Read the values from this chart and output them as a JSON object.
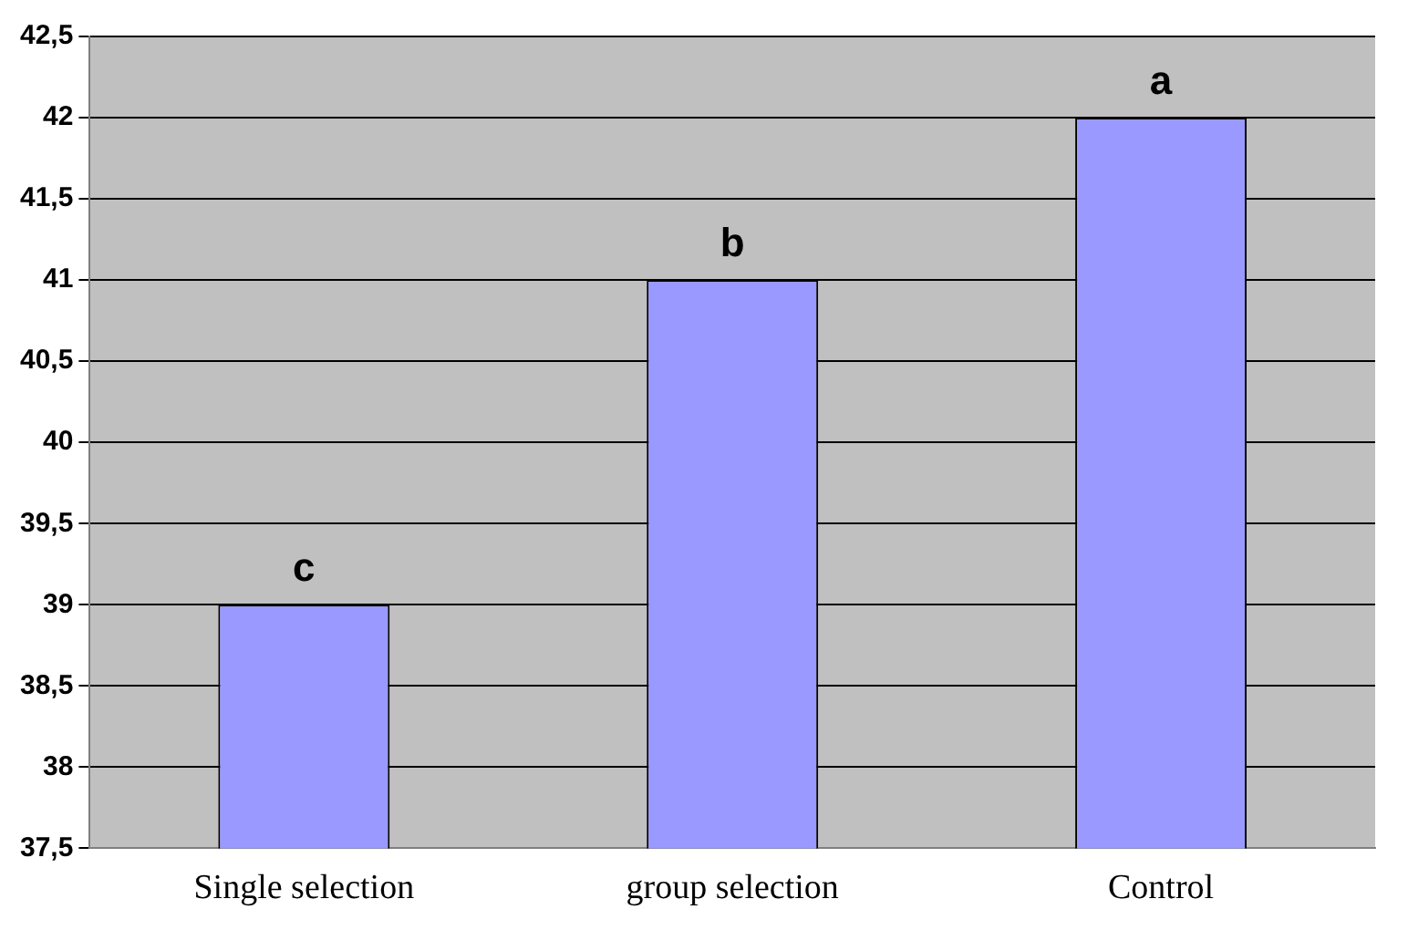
{
  "chart_data": {
    "type": "bar",
    "categories": [
      "Single selection",
      "group selection",
      "Control"
    ],
    "values": [
      39,
      41,
      42
    ],
    "color": "#9999ff",
    "ylim": [
      37.5,
      42.5
    ],
    "yticks": [
      {
        "value": 37.5,
        "label": "37,5"
      },
      38,
      {
        "value": 38.5,
        "label": "38,5"
      },
      39,
      {
        "value": 39.5,
        "label": "39,5"
      },
      40,
      {
        "value": 40.5,
        "label": "40,5"
      },
      41,
      {
        "value": 41.5,
        "label": "41,5"
      },
      42,
      {
        "value": 42.5,
        "label": "42,5"
      }
    ],
    "grid": "y",
    "legend": false,
    "annotations": [
      {
        "text": "c",
        "x": "Single selection",
        "y": 39
      },
      {
        "text": "b",
        "x": "group selection",
        "y": 41
      },
      {
        "text": "a",
        "x": "Control",
        "y": 42
      }
    ]
  }
}
